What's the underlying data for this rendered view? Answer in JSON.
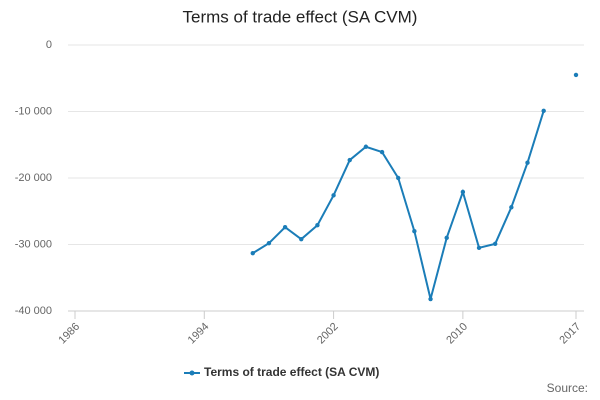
{
  "chart_data": {
    "type": "line",
    "title": "Terms of trade effect (SA CVM)",
    "x": [
      1997,
      1998,
      1999,
      2000,
      2001,
      2002,
      2003,
      2004,
      2005,
      2006,
      2007,
      2008,
      2009,
      2010,
      2011,
      2012,
      2013,
      2014,
      2015,
      2016,
      2017
    ],
    "series": [
      {
        "name": "Terms of trade effect (SA CVM)",
        "color": "#1b7db8",
        "values": [
          -31300,
          -29800,
          -27400,
          -29200,
          -27100,
          -22600,
          -17300,
          -15300,
          -16100,
          -20000,
          -28000,
          -38200,
          -29000,
          -22100,
          -30500,
          -29900,
          -24400,
          -17700,
          -9900,
          null,
          -4500
        ]
      }
    ],
    "xlim": [
      1986,
      2017
    ],
    "xticks": [
      1986,
      1994,
      2002,
      2010,
      2017
    ],
    "ylim": [
      -40000,
      0
    ],
    "yticks": [
      {
        "value": -40000,
        "label": "-40 000"
      },
      {
        "value": -30000,
        "label": "-30 000"
      },
      {
        "value": -20000,
        "label": "-20 000"
      },
      {
        "value": -10000,
        "label": "-10 000"
      },
      0
    ],
    "grid": true,
    "legend": "bottom",
    "source_label": "Source:"
  }
}
